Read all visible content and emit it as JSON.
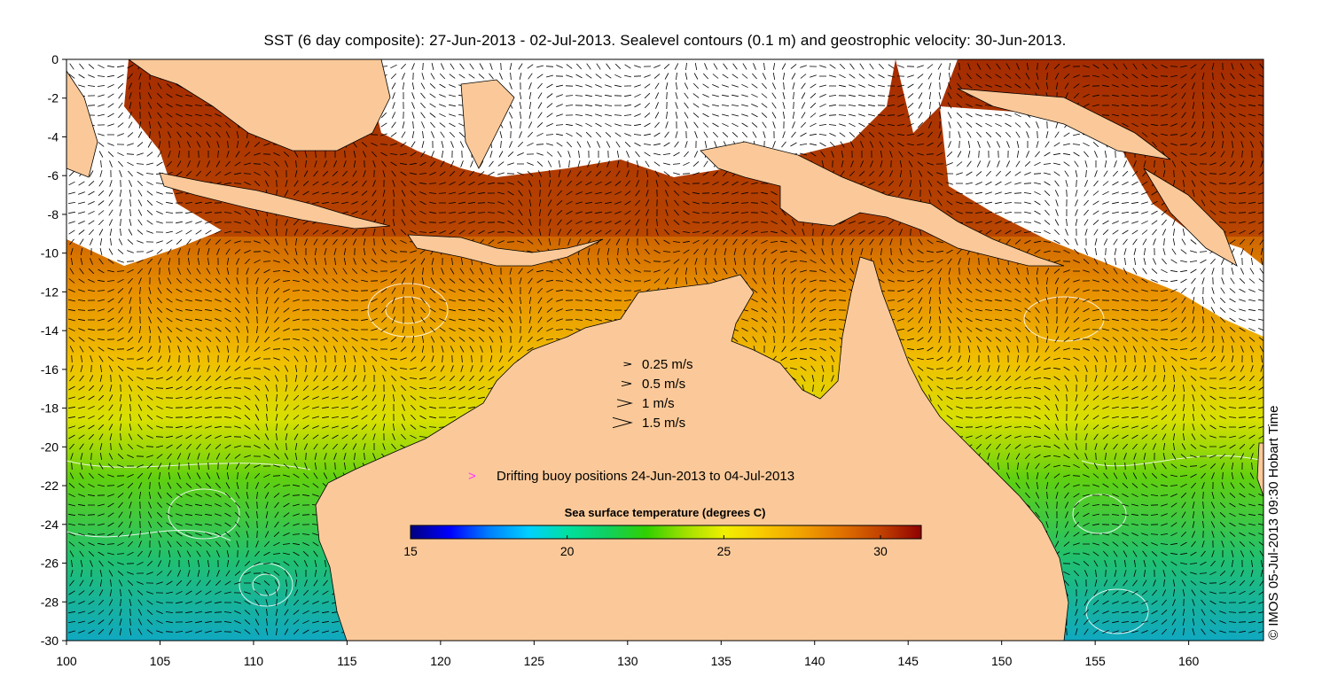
{
  "title": "SST (6 day composite): 27-Jun-2013 - 02-Jul-2013. Sealevel contours (0.1 m) and geostrophic velocity: 30-Jun-2013.",
  "credit": "© IMOS 05-Jul-2013 09:30 Hobart Time",
  "map": {
    "lon_range": [
      100,
      164
    ],
    "lat_range": [
      -30,
      0
    ],
    "lon_ticks": [
      "100",
      "105",
      "110",
      "115",
      "120",
      "125",
      "130",
      "135",
      "140",
      "145",
      "150",
      "155",
      "160"
    ],
    "lat_ticks": [
      "0",
      "-2",
      "-4",
      "-6",
      "-8",
      "-10",
      "-12",
      "-14",
      "-16",
      "-18",
      "-20",
      "-22",
      "-24",
      "-26",
      "-28",
      "-30"
    ],
    "land_color": "#fbc999",
    "cloud_color": "#ffffff"
  },
  "velocity_legend": {
    "items": [
      {
        "label": "0.25 m/s",
        "speed": 0.25
      },
      {
        "label": "0.5 m/s",
        "speed": 0.5
      },
      {
        "label": "1 m/s",
        "speed": 1
      },
      {
        "label": "1.5 m/s",
        "speed": 1.5
      }
    ]
  },
  "buoy_legend": {
    "label": "Drifting buoy positions 24-Jun-2013 to 04-Jul-2013",
    "marker_color": "#ff33ff"
  },
  "colorbar": {
    "title": "Sea surface temperature (degrees C)",
    "min": 15,
    "max": 31.3,
    "ticks": [
      "15",
      "20",
      "25",
      "30"
    ],
    "colors": [
      "#00007f",
      "#0000ff",
      "#0080ff",
      "#00d0ff",
      "#00e0a0",
      "#10d060",
      "#30d000",
      "#a0e000",
      "#f0f000",
      "#f8c800",
      "#f0a000",
      "#e07000",
      "#c04000",
      "#900000"
    ]
  }
}
